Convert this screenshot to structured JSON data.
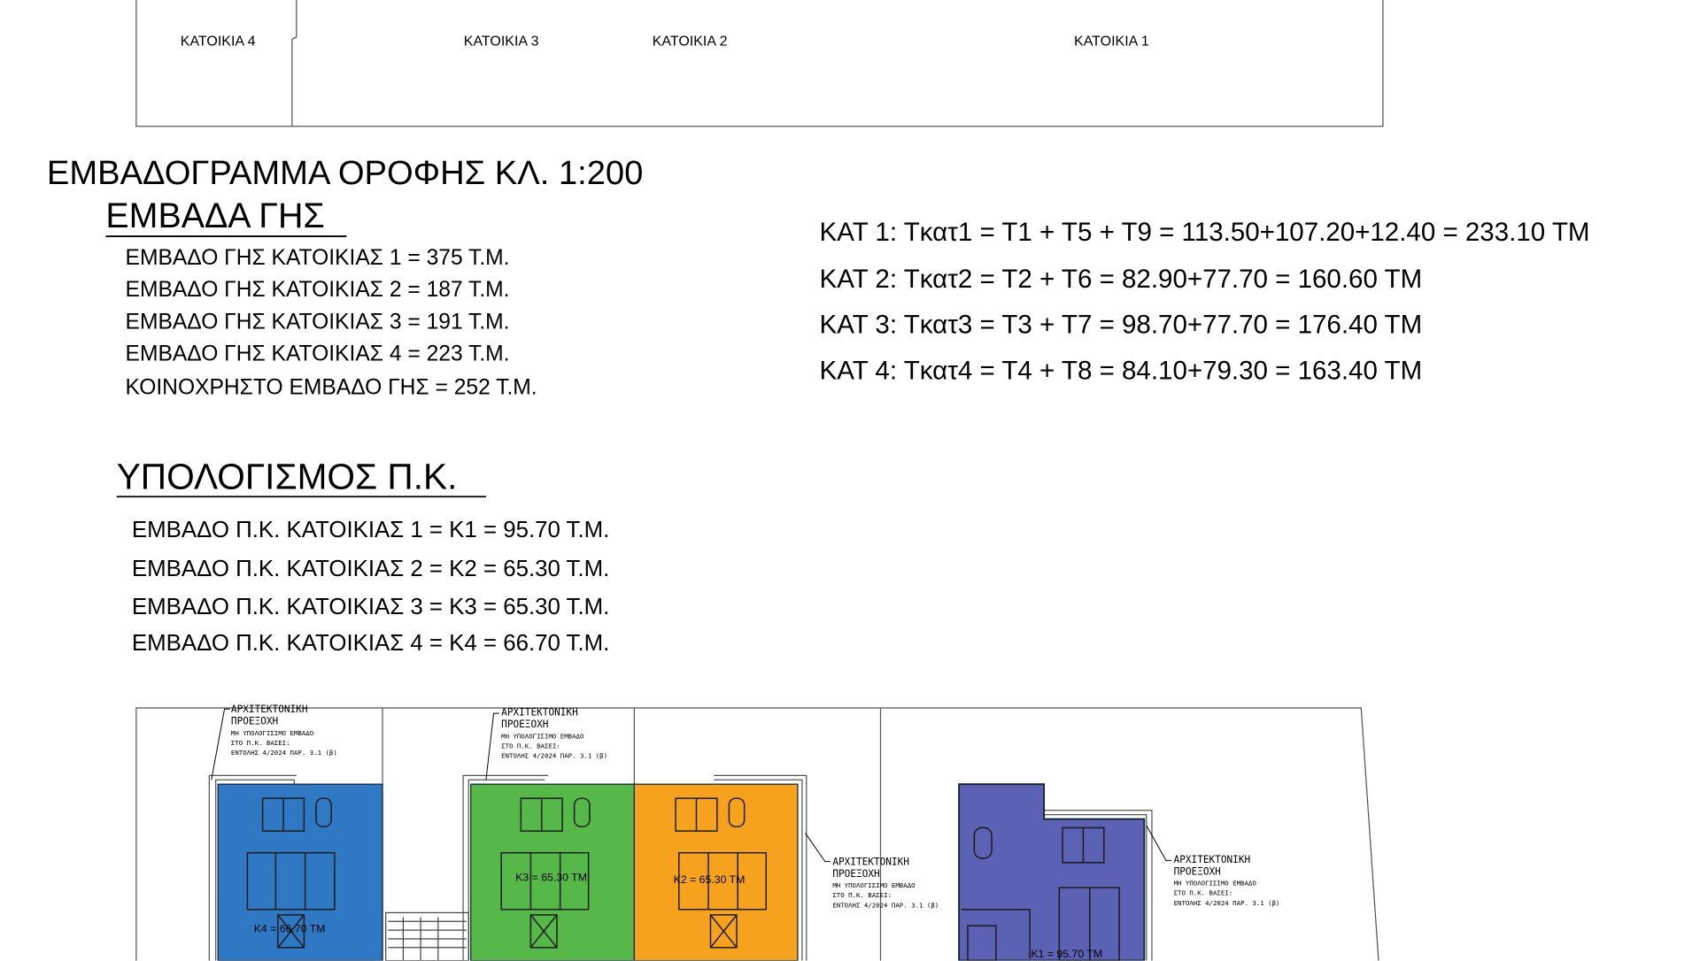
{
  "top_plan": {
    "labels": [
      "ΚΑΤΟΙΚΙΑ 4",
      "ΚΑΤΟΙΚΙΑ 3",
      "ΚΑΤΟΙΚΙΑ 2",
      "ΚΑΤΟΙΚΙΑ 1"
    ]
  },
  "title": "ΕΜΒΑΔΟΓΡΑΜΜΑ ΟΡΟΦΗΣ ΚΛ. 1:200",
  "ground": {
    "heading": "ΕΜΒΑΔΑ ΓΗΣ",
    "lines": [
      "ΕΜΒΑΔΟ ΓΗΣ ΚΑΤΟΙΚΙΑΣ 1 = 375 Τ.Μ.",
      "ΕΜΒΑΔΟ ΓΗΣ ΚΑΤΟΙΚΙΑΣ 2 = 187 Τ.Μ.",
      "ΕΜΒΑΔΟ ΓΗΣ ΚΑΤΟΙΚΙΑΣ 3 = 191 Τ.Μ.",
      "ΕΜΒΑΔΟ ΓΗΣ ΚΑΤΟΙΚΙΑΣ 4 = 223 Τ.Μ.",
      "ΚΟΙΝΟΧΡΗΣΤΟ ΕΜΒΑΔΟ ΓΗΣ  = 252 Τ.Μ."
    ]
  },
  "formulas": [
    "ΚΑΤ 1: Τκατ1 = Τ1 + Τ5 + Τ9 = 113.50+107.20+12.40 = 233.10 ΤΜ",
    "ΚΑΤ 2: Τκατ2 = Τ2 + Τ6 = 82.90+77.70 = 160.60 ΤΜ",
    "ΚΑΤ 3: Τκατ3 = Τ3 + Τ7 = 98.70+77.70 = 176.40 ΤΜ",
    "ΚΑΤ 4: Τκατ4 = Τ4 + Τ8 = 84.10+79.30 = 163.40 ΤΜ"
  ],
  "pk": {
    "heading": "ΥΠΟΛΟΓΙΣΜΟΣ  Π.Κ.",
    "lines": [
      "ΕΜΒΑΔΟ Π.Κ. ΚΑΤΟΙΚΙΑΣ 1 = Κ1 = 95.70 Τ.Μ.",
      "ΕΜΒΑΔΟ Π.Κ. ΚΑΤΟΙΚΙΑΣ 2 = Κ2 = 65.30 Τ.Μ.",
      "ΕΜΒΑΔΟ Π.Κ. ΚΑΤΟΙΚΙΑΣ 3 = Κ3 = 65.30 Τ.Μ.",
      "ΕΜΒΑΔΟ Π.Κ. ΚΑΤΟΙΚΙΑΣ 4 = Κ4 = 66.70 Τ.Μ."
    ]
  },
  "plan": {
    "areas": [
      "Κ4 = 66.70 ΤΜ",
      "Κ3 = 65.30 ΤΜ",
      "Κ2 = 65.30 ΤΜ",
      "Κ1 = 95.70 ΤΜ"
    ],
    "colors": {
      "k4": "#2f78c4",
      "k3": "#56b848",
      "k2": "#f7a21e",
      "k1": "#5b62b3"
    },
    "annotation": {
      "l1": "ΑΡΧΙΤΕΚΤΟΝΙΚΗ",
      "l2": "ΠΡΟΕΞΟΧΗ",
      "l3": "ΜΗ ΥΠΟΛΟΓΙΣΙΜΟ ΕΜΒΑΔΟ",
      "l4": "ΣΤΟ Π.Κ. ΒΑΣΕΙ:",
      "l5": "ΕΝΤΟΛΗΣ 4/2024 ΠΑΡ. 3.1 (β)"
    }
  }
}
